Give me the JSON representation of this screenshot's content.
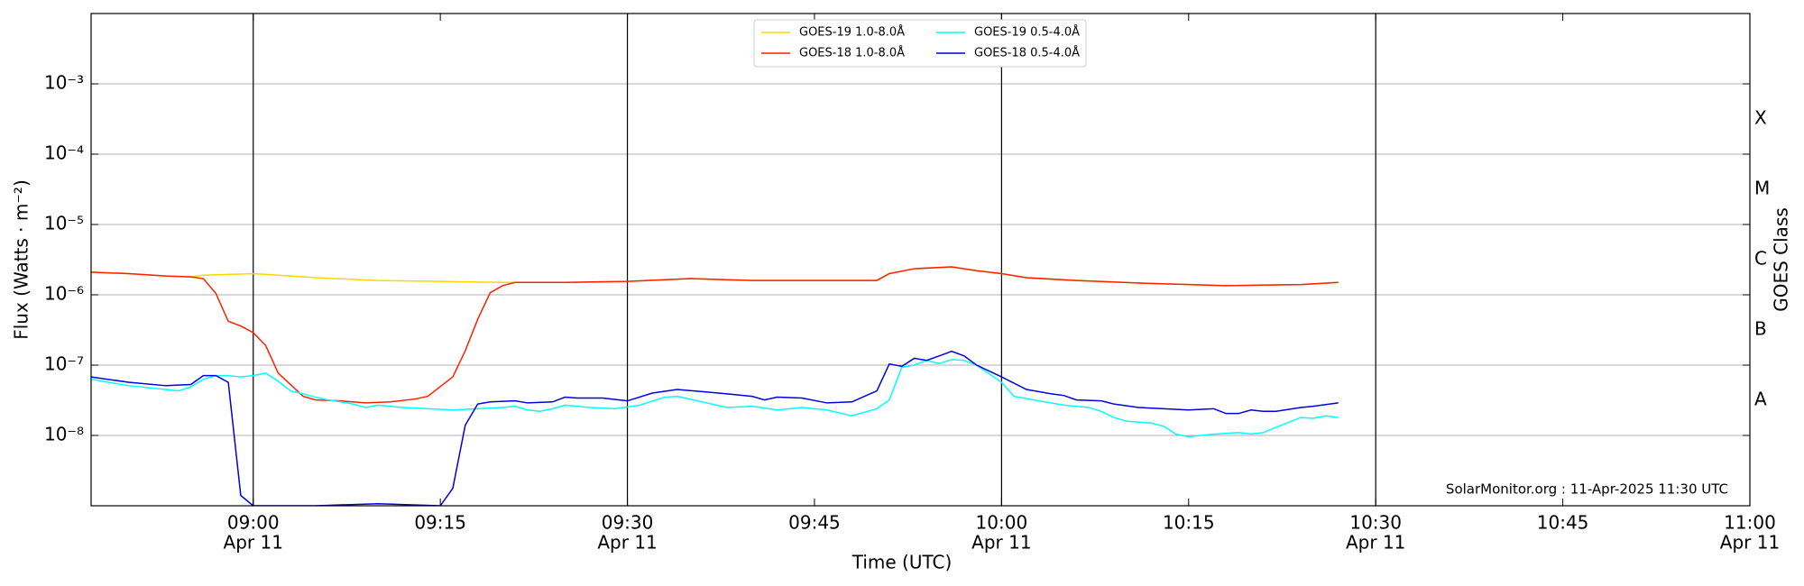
{
  "chart_data": {
    "type": "line",
    "ylabel": "Flux (Watts · m⁻²)",
    "xlabel": "Time (UTC)",
    "y2label": "GOES Class",
    "annotation": "SolarMonitor.org : 11-Apr-2025 11:30 UTC",
    "log_y": true,
    "grid": true,
    "legend": "upper center",
    "ylim": [
      1e-09,
      0.01
    ],
    "yticks": [
      {
        "value": 1e-08,
        "label": "10⁻⁸"
      },
      {
        "value": 1e-07,
        "label": "10⁻⁷"
      },
      {
        "value": 1e-06,
        "label": "10⁻⁶"
      },
      {
        "value": 1e-05,
        "label": "10⁻⁵"
      },
      {
        "value": 0.0001,
        "label": "10⁻⁴"
      },
      {
        "value": 0.001,
        "label": "10⁻³"
      }
    ],
    "y2lim": [
      1e-09,
      0.01
    ],
    "y2ticks": [
      {
        "value": 3.16e-08,
        "label": "A"
      },
      {
        "value": 3.16e-07,
        "label": "B"
      },
      {
        "value": 3.16e-06,
        "label": "C"
      },
      {
        "value": 3.16e-05,
        "label": "M"
      },
      {
        "value": 0.000316,
        "label": "X"
      }
    ],
    "xlim": [
      "08:47",
      "11:00"
    ],
    "xticks": [
      {
        "value": "09:00",
        "label": "09:00",
        "date": "Apr 11"
      },
      {
        "value": "09:15",
        "label": "09:15"
      },
      {
        "value": "09:30",
        "label": "09:30",
        "date": "Apr 11"
      },
      {
        "value": "09:45",
        "label": "09:45"
      },
      {
        "value": "10:00",
        "label": "10:00",
        "date": "Apr 11"
      },
      {
        "value": "10:15",
        "label": "10:15"
      },
      {
        "value": "10:30",
        "label": "10:30",
        "date": "Apr 11"
      },
      {
        "value": "10:45",
        "label": "10:45"
      },
      {
        "value": "11:00",
        "label": "11:00",
        "date": "Apr 11"
      }
    ],
    "vlines": [
      "09:00",
      "09:30",
      "10:00",
      "10:30"
    ],
    "series": [
      {
        "name": "GOES-19 1.0-8.0Å",
        "color": "#ffd700",
        "x": [
          "08:47",
          "08:50",
          "08:53",
          "08:55",
          "08:56",
          "08:58",
          "09:00",
          "09:02",
          "09:05",
          "09:10",
          "09:15",
          "09:20",
          "09:21",
          "09:25",
          "09:30",
          "09:35",
          "09:40",
          "09:45",
          "09:50",
          "09:51",
          "09:53",
          "09:56",
          "09:58",
          "10:00",
          "10:02",
          "10:06",
          "10:12",
          "10:18",
          "10:24",
          "10:27"
        ],
        "values": [
          2.1e-06,
          2e-06,
          1.85e-06,
          1.8e-06,
          1.9e-06,
          1.95e-06,
          2e-06,
          1.9e-06,
          1.75e-06,
          1.6e-06,
          1.55e-06,
          1.5e-06,
          1.5e-06,
          1.5e-06,
          1.55e-06,
          1.7e-06,
          1.6e-06,
          1.6e-06,
          1.6e-06,
          2e-06,
          2.35e-06,
          2.5e-06,
          2.2e-06,
          2e-06,
          1.75e-06,
          1.6e-06,
          1.45e-06,
          1.35e-06,
          1.4e-06,
          1.5e-06
        ]
      },
      {
        "name": "GOES-18 1.0-8.0Å",
        "color": "#ff2000",
        "x": [
          "08:47",
          "08:50",
          "08:53",
          "08:55",
          "08:56",
          "08:57",
          "08:58",
          "08:59",
          "09:00",
          "09:01",
          "09:02",
          "09:04",
          "09:05",
          "09:07",
          "09:09",
          "09:11",
          "09:13",
          "09:14",
          "09:16",
          "09:17",
          "09:18",
          "09:19",
          "09:20",
          "09:21",
          "09:25",
          "09:30",
          "09:35",
          "09:40",
          "09:45",
          "09:50",
          "09:51",
          "09:53",
          "09:56",
          "09:58",
          "10:00",
          "10:02",
          "10:06",
          "10:12",
          "10:18",
          "10:24",
          "10:27"
        ],
        "values": [
          2.1e-06,
          2e-06,
          1.85e-06,
          1.8e-06,
          1.7e-06,
          1.05e-06,
          4.2e-07,
          3.6e-07,
          2.9e-07,
          1.9e-07,
          7.7e-08,
          3.6e-08,
          3.2e-08,
          3.1e-08,
          2.9e-08,
          3e-08,
          3.3e-08,
          3.6e-08,
          6.8e-08,
          1.6e-07,
          4.5e-07,
          1.07e-06,
          1.35e-06,
          1.5e-06,
          1.5e-06,
          1.55e-06,
          1.7e-06,
          1.6e-06,
          1.6e-06,
          1.6e-06,
          2e-06,
          2.35e-06,
          2.5e-06,
          2.2e-06,
          2e-06,
          1.75e-06,
          1.6e-06,
          1.45e-06,
          1.35e-06,
          1.4e-06,
          1.5e-06
        ]
      },
      {
        "name": "GOES-19 0.5-4.0Å",
        "color": "#00ffff",
        "x": [
          "08:47",
          "08:50",
          "08:53",
          "08:54",
          "08:55",
          "08:56",
          "08:57",
          "08:58",
          "08:59",
          "09:00",
          "09:01",
          "09:02",
          "09:03",
          "09:04",
          "09:05",
          "09:06",
          "09:07",
          "09:08",
          "09:09",
          "09:10",
          "09:12",
          "09:14",
          "09:16",
          "09:18",
          "09:20",
          "09:21",
          "09:22",
          "09:23",
          "09:24",
          "09:25",
          "09:27",
          "09:29",
          "09:31",
          "09:33",
          "09:34",
          "09:36",
          "09:38",
          "09:40",
          "09:42",
          "09:44",
          "09:46",
          "09:48",
          "09:50",
          "09:51",
          "09:52",
          "09:53",
          "09:54",
          "09:55",
          "09:56",
          "09:57",
          "09:58",
          "10:00",
          "10:01",
          "10:03",
          "10:05",
          "10:07",
          "10:08",
          "10:09",
          "10:10",
          "10:12",
          "10:13",
          "10:14",
          "10:15",
          "10:17",
          "10:19",
          "10:20",
          "10:21",
          "10:22",
          "10:24",
          "10:25",
          "10:26",
          "10:27"
        ],
        "values": [
          6.3e-08,
          5.1e-08,
          4.5e-08,
          4.3e-08,
          4.9e-08,
          6.3e-08,
          7.1e-08,
          7.1e-08,
          6.8e-08,
          7.1e-08,
          7.7e-08,
          5.9e-08,
          4.3e-08,
          3.9e-08,
          3.5e-08,
          3.2e-08,
          3e-08,
          2.8e-08,
          2.5e-08,
          2.7e-08,
          2.5e-08,
          2.4e-08,
          2.3e-08,
          2.4e-08,
          2.5e-08,
          2.6e-08,
          2.3e-08,
          2.2e-08,
          2.4e-08,
          2.7e-08,
          2.5e-08,
          2.4e-08,
          2.7e-08,
          3.5e-08,
          3.6e-08,
          3e-08,
          2.5e-08,
          2.6e-08,
          2.3e-08,
          2.5e-08,
          2.3e-08,
          1.9e-08,
          2.4e-08,
          3.2e-08,
          9.3e-08,
          1e-07,
          1.17e-07,
          1.05e-07,
          1.2e-07,
          1.17e-07,
          1e-07,
          5.7e-08,
          3.6e-08,
          3.1e-08,
          2.7e-08,
          2.5e-08,
          2.2e-08,
          1.8e-08,
          1.6e-08,
          1.5e-08,
          1.35e-08,
          1.04e-08,
          9.6e-09,
          1.04e-08,
          1.1e-08,
          1.05e-08,
          1.1e-08,
          1.3e-08,
          1.8e-08,
          1.75e-08,
          1.9e-08,
          1.8e-08
        ]
      },
      {
        "name": "GOES-18 0.5-4.0Å",
        "color": "#0000dd",
        "x": [
          "08:47",
          "08:50",
          "08:53",
          "08:55",
          "08:56",
          "08:57",
          "08:58",
          "08:59",
          "09:00",
          "09:05",
          "09:10",
          "09:15",
          "09:16",
          "09:17",
          "09:18",
          "09:19",
          "09:21",
          "09:22",
          "09:24",
          "09:25",
          "09:26",
          "09:28",
          "09:30",
          "09:32",
          "09:34",
          "09:36",
          "09:38",
          "09:40",
          "09:41",
          "09:42",
          "09:44",
          "09:46",
          "09:48",
          "09:50",
          "09:51",
          "09:52",
          "09:53",
          "09:54",
          "09:55",
          "09:56",
          "09:57",
          "09:58",
          "10:00",
          "10:02",
          "10:04",
          "10:05",
          "10:06",
          "10:08",
          "10:09",
          "10:11",
          "10:13",
          "10:15",
          "10:17",
          "10:18",
          "10:19",
          "10:20",
          "10:21",
          "10:22",
          "10:24",
          "10:25",
          "10:27"
        ],
        "values": [
          6.8e-08,
          5.7e-08,
          5.1e-08,
          5.3e-08,
          7.1e-08,
          7.1e-08,
          5.7e-08,
          1.4e-09,
          1e-09,
          1e-09,
          1.07e-09,
          1e-09,
          1.77e-09,
          1.4e-08,
          2.8e-08,
          3e-08,
          3.1e-08,
          2.9e-08,
          3e-08,
          3.5e-08,
          3.4e-08,
          3.4e-08,
          3.1e-08,
          4e-08,
          4.5e-08,
          4.2e-08,
          3.9e-08,
          3.6e-08,
          3.2e-08,
          3.5e-08,
          3.4e-08,
          2.9e-08,
          3e-08,
          4.3e-08,
          1.04e-07,
          9.6e-08,
          1.25e-07,
          1.17e-07,
          1.35e-07,
          1.57e-07,
          1.35e-07,
          1e-07,
          6.8e-08,
          4.5e-08,
          3.9e-08,
          3.7e-08,
          3.2e-08,
          3.1e-08,
          2.8e-08,
          2.5e-08,
          2.4e-08,
          2.3e-08,
          2.4e-08,
          2.05e-08,
          2.05e-08,
          2.3e-08,
          2.2e-08,
          2.2e-08,
          2.5e-08,
          2.6e-08,
          2.9e-08
        ]
      }
    ]
  }
}
